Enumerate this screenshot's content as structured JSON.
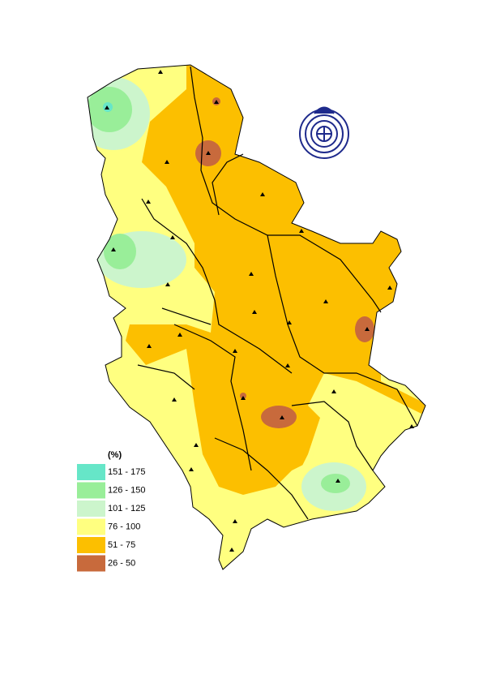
{
  "legend": {
    "title": "(%)",
    "items": [
      {
        "label": "151 - 175",
        "color": "#66e6c8"
      },
      {
        "label": "126 - 150",
        "color": "#99ee99"
      },
      {
        "label": "101 - 125",
        "color": "#ccf5cc"
      },
      {
        "label": "76 - 100",
        "color": "#ffff80"
      },
      {
        "label": "51 - 75",
        "color": "#fcbf00"
      },
      {
        "label": "26 - 50",
        "color": "#c86a3c"
      }
    ]
  }
}
